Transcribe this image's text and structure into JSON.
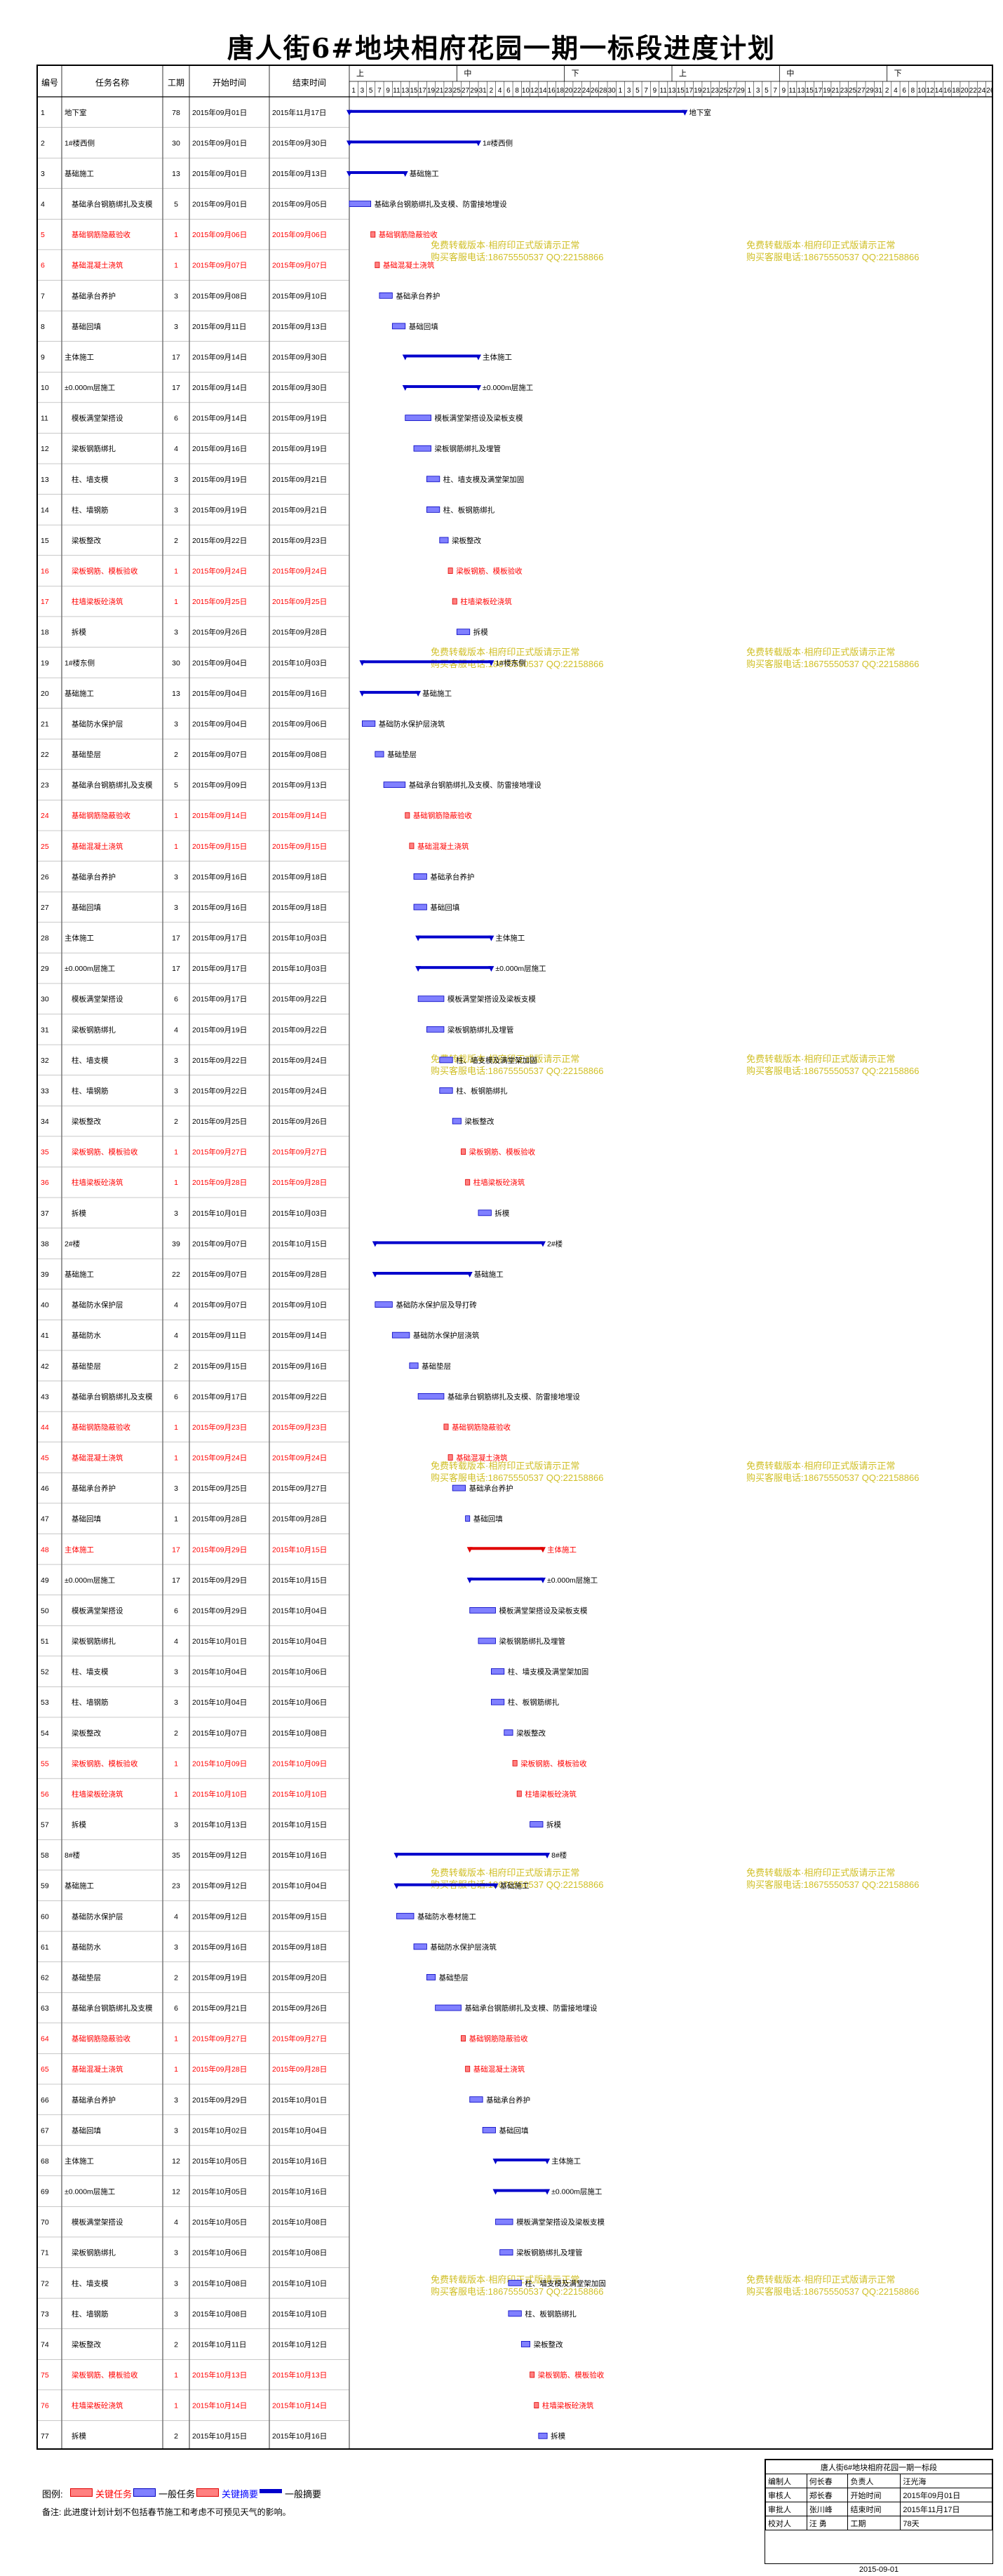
{
  "title": "唐人街6#地块相府花园一期一标段进度计划",
  "columns": [
    "编号",
    "任务名称",
    "工期",
    "开始时间",
    "结束时间"
  ],
  "timeline": {
    "months": [
      "上",
      "中",
      "下",
      "上",
      "中",
      "下"
    ],
    "day_ticks": [
      "1",
      "3",
      "5",
      "7",
      "9",
      "11",
      "13",
      "15",
      "17",
      "19",
      "21",
      "23",
      "25",
      "27",
      "29",
      "31",
      "2",
      "4",
      "6",
      "8",
      "10",
      "12",
      "14",
      "16",
      "18",
      "20",
      "22",
      "24",
      "26",
      "28",
      "30",
      "1",
      "3",
      "5",
      "7",
      "9",
      "11",
      "13",
      "15",
      "17",
      "19",
      "21",
      "23",
      "25",
      "27",
      "29",
      "1",
      "3",
      "5",
      "7",
      "9",
      "11",
      "13",
      "15",
      "17",
      "19",
      "21",
      "23",
      "25",
      "27",
      "29",
      "31",
      "2",
      "4",
      "6",
      "8",
      "10",
      "12",
      "14",
      "16",
      "18",
      "20",
      "22",
      "24",
      "26"
    ]
  },
  "watermark_lines": [
    "免费转载版本·相府印正式版请示正常",
    "购买客服电话:18675550537 QQ:22158866"
  ],
  "rows": [
    {
      "n": "1",
      "name": "地下室",
      "dur": "78",
      "start": "2015年09月01日",
      "end": "2015年11月17日",
      "s": 0,
      "d": 78,
      "type": "summary",
      "label": "地下室"
    },
    {
      "n": "2",
      "name": "1#楼西侧",
      "dur": "30",
      "start": "2015年09月01日",
      "end": "2015年09月30日",
      "s": 0,
      "d": 30,
      "type": "summary",
      "label": "1#楼西侧"
    },
    {
      "n": "3",
      "name": "基础施工",
      "dur": "13",
      "start": "2015年09月01日",
      "end": "2015年09月13日",
      "s": 0,
      "d": 13,
      "type": "summary",
      "label": "基础施工"
    },
    {
      "n": "4",
      "name": "基础承台钢筋绑扎及支模",
      "dur": "5",
      "start": "2015年09月01日",
      "end": "2015年09月05日",
      "s": 0,
      "d": 5,
      "type": "normal",
      "label": "基础承台钢筋绑扎及支模、防雷接地埋设"
    },
    {
      "n": "5",
      "name": "基础钢筋隐蔽验收",
      "dur": "1",
      "start": "2015年09月06日",
      "end": "2015年09月06日",
      "s": 5,
      "d": 1,
      "type": "critical",
      "label": "基础钢筋隐蔽验收"
    },
    {
      "n": "6",
      "name": "基础混凝土浇筑",
      "dur": "1",
      "start": "2015年09月07日",
      "end": "2015年09月07日",
      "s": 6,
      "d": 1,
      "type": "critical",
      "label": "基础混凝土浇筑"
    },
    {
      "n": "7",
      "name": "基础承台养护",
      "dur": "3",
      "start": "2015年09月08日",
      "end": "2015年09月10日",
      "s": 7,
      "d": 3,
      "type": "normal",
      "label": "基础承台养护"
    },
    {
      "n": "8",
      "name": "基础回填",
      "dur": "3",
      "start": "2015年09月11日",
      "end": "2015年09月13日",
      "s": 10,
      "d": 3,
      "type": "normal",
      "label": "基础回填"
    },
    {
      "n": "9",
      "name": "主体施工",
      "dur": "17",
      "start": "2015年09月14日",
      "end": "2015年09月30日",
      "s": 13,
      "d": 17,
      "type": "summary",
      "label": "主体施工"
    },
    {
      "n": "10",
      "name": "±0.000m层施工",
      "dur": "17",
      "start": "2015年09月14日",
      "end": "2015年09月30日",
      "s": 13,
      "d": 17,
      "type": "summary",
      "label": "±0.000m层施工"
    },
    {
      "n": "11",
      "name": "模板满堂架搭设",
      "dur": "6",
      "start": "2015年09月14日",
      "end": "2015年09月19日",
      "s": 13,
      "d": 6,
      "type": "normal",
      "label": "模板满堂架搭设及梁板支模"
    },
    {
      "n": "12",
      "name": "梁板钢筋绑扎",
      "dur": "4",
      "start": "2015年09月16日",
      "end": "2015年09月19日",
      "s": 15,
      "d": 4,
      "type": "normal",
      "label": "梁板钢筋绑扎及埋管"
    },
    {
      "n": "13",
      "name": "柱、墙支模",
      "dur": "3",
      "start": "2015年09月19日",
      "end": "2015年09月21日",
      "s": 18,
      "d": 3,
      "type": "normal",
      "label": "柱、墙支模及满堂架加固"
    },
    {
      "n": "14",
      "name": "柱、墙钢筋",
      "dur": "3",
      "start": "2015年09月19日",
      "end": "2015年09月21日",
      "s": 18,
      "d": 3,
      "type": "normal",
      "label": "柱、板钢筋绑扎"
    },
    {
      "n": "15",
      "name": "梁板整改",
      "dur": "2",
      "start": "2015年09月22日",
      "end": "2015年09月23日",
      "s": 21,
      "d": 2,
      "type": "normal",
      "label": "梁板整改"
    },
    {
      "n": "16",
      "name": "梁板钢筋、模板验收",
      "dur": "1",
      "start": "2015年09月24日",
      "end": "2015年09月24日",
      "s": 23,
      "d": 1,
      "type": "critical",
      "label": "梁板钢筋、模板验收"
    },
    {
      "n": "17",
      "name": "柱墙梁板砼浇筑",
      "dur": "1",
      "start": "2015年09月25日",
      "end": "2015年09月25日",
      "s": 24,
      "d": 1,
      "type": "critical",
      "label": "柱墙梁板砼浇筑"
    },
    {
      "n": "18",
      "name": "拆模",
      "dur": "3",
      "start": "2015年09月26日",
      "end": "2015年09月28日",
      "s": 25,
      "d": 3,
      "type": "normal",
      "label": "拆模"
    },
    {
      "n": "19",
      "name": "1#楼东侧",
      "dur": "30",
      "start": "2015年09月04日",
      "end": "2015年10月03日",
      "s": 3,
      "d": 30,
      "type": "summary",
      "label": "1#楼东侧"
    },
    {
      "n": "20",
      "name": "基础施工",
      "dur": "13",
      "start": "2015年09月04日",
      "end": "2015年09月16日",
      "s": 3,
      "d": 13,
      "type": "summary",
      "label": "基础施工"
    },
    {
      "n": "21",
      "name": "基础防水保护层",
      "dur": "3",
      "start": "2015年09月04日",
      "end": "2015年09月06日",
      "s": 3,
      "d": 3,
      "type": "normal",
      "label": "基础防水保护层浇筑"
    },
    {
      "n": "22",
      "name": "基础垫层",
      "dur": "2",
      "start": "2015年09月07日",
      "end": "2015年09月08日",
      "s": 6,
      "d": 2,
      "type": "normal",
      "label": "基础垫层"
    },
    {
      "n": "23",
      "name": "基础承台钢筋绑扎及支模",
      "dur": "5",
      "start": "2015年09月09日",
      "end": "2015年09月13日",
      "s": 8,
      "d": 5,
      "type": "normal",
      "label": "基础承台钢筋绑扎及支模、防雷接地埋设"
    },
    {
      "n": "24",
      "name": "基础钢筋隐蔽验收",
      "dur": "1",
      "start": "2015年09月14日",
      "end": "2015年09月14日",
      "s": 13,
      "d": 1,
      "type": "critical",
      "label": "基础钢筋隐蔽验收"
    },
    {
      "n": "25",
      "name": "基础混凝土浇筑",
      "dur": "1",
      "start": "2015年09月15日",
      "end": "2015年09月15日",
      "s": 14,
      "d": 1,
      "type": "critical",
      "label": "基础混凝土浇筑"
    },
    {
      "n": "26",
      "name": "基础承台养护",
      "dur": "3",
      "start": "2015年09月16日",
      "end": "2015年09月18日",
      "s": 15,
      "d": 3,
      "type": "normal",
      "label": "基础承台养护"
    },
    {
      "n": "27",
      "name": "基础回填",
      "dur": "3",
      "start": "2015年09月16日",
      "end": "2015年09月18日",
      "s": 15,
      "d": 3,
      "type": "normal",
      "label": "基础回填"
    },
    {
      "n": "28",
      "name": "主体施工",
      "dur": "17",
      "start": "2015年09月17日",
      "end": "2015年10月03日",
      "s": 16,
      "d": 17,
      "type": "summary",
      "label": "主体施工"
    },
    {
      "n": "29",
      "name": "±0.000m层施工",
      "dur": "17",
      "start": "2015年09月17日",
      "end": "2015年10月03日",
      "s": 16,
      "d": 17,
      "type": "summary",
      "label": "±0.000m层施工"
    },
    {
      "n": "30",
      "name": "模板满堂架搭设",
      "dur": "6",
      "start": "2015年09月17日",
      "end": "2015年09月22日",
      "s": 16,
      "d": 6,
      "type": "normal",
      "label": "模板满堂架搭设及梁板支模"
    },
    {
      "n": "31",
      "name": "梁板钢筋绑扎",
      "dur": "4",
      "start": "2015年09月19日",
      "end": "2015年09月22日",
      "s": 18,
      "d": 4,
      "type": "normal",
      "label": "梁板钢筋绑扎及埋管"
    },
    {
      "n": "32",
      "name": "柱、墙支模",
      "dur": "3",
      "start": "2015年09月22日",
      "end": "2015年09月24日",
      "s": 21,
      "d": 3,
      "type": "normal",
      "label": "柱、墙支模及满堂架加固"
    },
    {
      "n": "33",
      "name": "柱、墙钢筋",
      "dur": "3",
      "start": "2015年09月22日",
      "end": "2015年09月24日",
      "s": 21,
      "d": 3,
      "type": "normal",
      "label": "柱、板钢筋绑扎"
    },
    {
      "n": "34",
      "name": "梁板整改",
      "dur": "2",
      "start": "2015年09月25日",
      "end": "2015年09月26日",
      "s": 24,
      "d": 2,
      "type": "normal",
      "label": "梁板整改"
    },
    {
      "n": "35",
      "name": "梁板钢筋、模板验收",
      "dur": "1",
      "start": "2015年09月27日",
      "end": "2015年09月27日",
      "s": 26,
      "d": 1,
      "type": "critical",
      "label": "梁板钢筋、模板验收"
    },
    {
      "n": "36",
      "name": "柱墙梁板砼浇筑",
      "dur": "1",
      "start": "2015年09月28日",
      "end": "2015年09月28日",
      "s": 27,
      "d": 1,
      "type": "critical",
      "label": "柱墙梁板砼浇筑"
    },
    {
      "n": "37",
      "name": "拆模",
      "dur": "3",
      "start": "2015年10月01日",
      "end": "2015年10月03日",
      "s": 30,
      "d": 3,
      "type": "normal",
      "label": "拆模"
    },
    {
      "n": "38",
      "name": "2#楼",
      "dur": "39",
      "start": "2015年09月07日",
      "end": "2015年10月15日",
      "s": 6,
      "d": 39,
      "type": "summary",
      "label": "2#楼"
    },
    {
      "n": "39",
      "name": "基础施工",
      "dur": "22",
      "start": "2015年09月07日",
      "end": "2015年09月28日",
      "s": 6,
      "d": 22,
      "type": "summary",
      "label": "基础施工"
    },
    {
      "n": "40",
      "name": "基础防水保护层",
      "dur": "4",
      "start": "2015年09月07日",
      "end": "2015年09月10日",
      "s": 6,
      "d": 4,
      "type": "normal",
      "label": "基础防水保护层及导打砖"
    },
    {
      "n": "41",
      "name": "基础防水",
      "dur": "4",
      "start": "2015年09月11日",
      "end": "2015年09月14日",
      "s": 10,
      "d": 4,
      "type": "normal",
      "label": "基础防水保护层浇筑"
    },
    {
      "n": "42",
      "name": "基础垫层",
      "dur": "2",
      "start": "2015年09月15日",
      "end": "2015年09月16日",
      "s": 14,
      "d": 2,
      "type": "normal",
      "label": "基础垫层"
    },
    {
      "n": "43",
      "name": "基础承台钢筋绑扎及支模",
      "dur": "6",
      "start": "2015年09月17日",
      "end": "2015年09月22日",
      "s": 16,
      "d": 6,
      "type": "normal",
      "label": "基础承台钢筋绑扎及支模、防雷接地埋设"
    },
    {
      "n": "44",
      "name": "基础钢筋隐蔽验收",
      "dur": "1",
      "start": "2015年09月23日",
      "end": "2015年09月23日",
      "s": 22,
      "d": 1,
      "type": "critical",
      "label": "基础钢筋隐蔽验收"
    },
    {
      "n": "45",
      "name": "基础混凝土浇筑",
      "dur": "1",
      "start": "2015年09月24日",
      "end": "2015年09月24日",
      "s": 23,
      "d": 1,
      "type": "critical",
      "label": "基础混凝土浇筑"
    },
    {
      "n": "46",
      "name": "基础承台养护",
      "dur": "3",
      "start": "2015年09月25日",
      "end": "2015年09月27日",
      "s": 24,
      "d": 3,
      "type": "normal",
      "label": "基础承台养护"
    },
    {
      "n": "47",
      "name": "基础回填",
      "dur": "1",
      "start": "2015年09月28日",
      "end": "2015年09月28日",
      "s": 27,
      "d": 1,
      "type": "normal",
      "label": "基础回填"
    },
    {
      "n": "48",
      "name": "主体施工",
      "dur": "17",
      "start": "2015年09月29日",
      "end": "2015年10月15日",
      "s": 28,
      "d": 17,
      "type": "critical-summary",
      "label": "主体施工"
    },
    {
      "n": "49",
      "name": "±0.000m层施工",
      "dur": "17",
      "start": "2015年09月29日",
      "end": "2015年10月15日",
      "s": 28,
      "d": 17,
      "type": "summary",
      "label": "±0.000m层施工"
    },
    {
      "n": "50",
      "name": "模板满堂架搭设",
      "dur": "6",
      "start": "2015年09月29日",
      "end": "2015年10月04日",
      "s": 28,
      "d": 6,
      "type": "normal",
      "label": "模板满堂架搭设及梁板支模"
    },
    {
      "n": "51",
      "name": "梁板钢筋绑扎",
      "dur": "4",
      "start": "2015年10月01日",
      "end": "2015年10月04日",
      "s": 30,
      "d": 4,
      "type": "normal",
      "label": "梁板钢筋绑扎及埋管"
    },
    {
      "n": "52",
      "name": "柱、墙支模",
      "dur": "3",
      "start": "2015年10月04日",
      "end": "2015年10月06日",
      "s": 33,
      "d": 3,
      "type": "normal",
      "label": "柱、墙支模及满堂架加固"
    },
    {
      "n": "53",
      "name": "柱、墙钢筋",
      "dur": "3",
      "start": "2015年10月04日",
      "end": "2015年10月06日",
      "s": 33,
      "d": 3,
      "type": "normal",
      "label": "柱、板钢筋绑扎"
    },
    {
      "n": "54",
      "name": "梁板整改",
      "dur": "2",
      "start": "2015年10月07日",
      "end": "2015年10月08日",
      "s": 36,
      "d": 2,
      "type": "normal",
      "label": "梁板整改"
    },
    {
      "n": "55",
      "name": "梁板钢筋、模板验收",
      "dur": "1",
      "start": "2015年10月09日",
      "end": "2015年10月09日",
      "s": 38,
      "d": 1,
      "type": "critical",
      "label": "梁板钢筋、模板验收"
    },
    {
      "n": "56",
      "name": "柱墙梁板砼浇筑",
      "dur": "1",
      "start": "2015年10月10日",
      "end": "2015年10月10日",
      "s": 39,
      "d": 1,
      "type": "critical",
      "label": "柱墙梁板砼浇筑"
    },
    {
      "n": "57",
      "name": "拆模",
      "dur": "3",
      "start": "2015年10月13日",
      "end": "2015年10月15日",
      "s": 42,
      "d": 3,
      "type": "normal",
      "label": "拆模"
    },
    {
      "n": "58",
      "name": "8#楼",
      "dur": "35",
      "start": "2015年09月12日",
      "end": "2015年10月16日",
      "s": 11,
      "d": 35,
      "type": "summary",
      "label": "8#楼"
    },
    {
      "n": "59",
      "name": "基础施工",
      "dur": "23",
      "start": "2015年09月12日",
      "end": "2015年10月04日",
      "s": 11,
      "d": 23,
      "type": "summary",
      "label": "基础施工"
    },
    {
      "n": "60",
      "name": "基础防水保护层",
      "dur": "4",
      "start": "2015年09月12日",
      "end": "2015年09月15日",
      "s": 11,
      "d": 4,
      "type": "normal",
      "label": "基础防水卷材施工"
    },
    {
      "n": "61",
      "name": "基础防水",
      "dur": "3",
      "start": "2015年09月16日",
      "end": "2015年09月18日",
      "s": 15,
      "d": 3,
      "type": "normal",
      "label": "基础防水保护层浇筑"
    },
    {
      "n": "62",
      "name": "基础垫层",
      "dur": "2",
      "start": "2015年09月19日",
      "end": "2015年09月20日",
      "s": 18,
      "d": 2,
      "type": "normal",
      "label": "基础垫层"
    },
    {
      "n": "63",
      "name": "基础承台钢筋绑扎及支模",
      "dur": "6",
      "start": "2015年09月21日",
      "end": "2015年09月26日",
      "s": 20,
      "d": 6,
      "type": "normal",
      "label": "基础承台钢筋绑扎及支模、防雷接地埋设"
    },
    {
      "n": "64",
      "name": "基础钢筋隐蔽验收",
      "dur": "1",
      "start": "2015年09月27日",
      "end": "2015年09月27日",
      "s": 26,
      "d": 1,
      "type": "critical",
      "label": "基础钢筋隐蔽验收"
    },
    {
      "n": "65",
      "name": "基础混凝土浇筑",
      "dur": "1",
      "start": "2015年09月28日",
      "end": "2015年09月28日",
      "s": 27,
      "d": 1,
      "type": "critical",
      "label": "基础混凝土浇筑"
    },
    {
      "n": "66",
      "name": "基础承台养护",
      "dur": "3",
      "start": "2015年09月29日",
      "end": "2015年10月01日",
      "s": 28,
      "d": 3,
      "type": "normal",
      "label": "基础承台养护"
    },
    {
      "n": "67",
      "name": "基础回填",
      "dur": "3",
      "start": "2015年10月02日",
      "end": "2015年10月04日",
      "s": 31,
      "d": 3,
      "type": "normal",
      "label": "基础回填"
    },
    {
      "n": "68",
      "name": "主体施工",
      "dur": "12",
      "start": "2015年10月05日",
      "end": "2015年10月16日",
      "s": 34,
      "d": 12,
      "type": "summary",
      "label": "主体施工"
    },
    {
      "n": "69",
      "name": "±0.000m层施工",
      "dur": "12",
      "start": "2015年10月05日",
      "end": "2015年10月16日",
      "s": 34,
      "d": 12,
      "type": "summary",
      "label": "±0.000m层施工"
    },
    {
      "n": "70",
      "name": "模板满堂架搭设",
      "dur": "4",
      "start": "2015年10月05日",
      "end": "2015年10月08日",
      "s": 34,
      "d": 4,
      "type": "normal",
      "label": "模板满堂架搭设及梁板支模"
    },
    {
      "n": "71",
      "name": "梁板钢筋绑扎",
      "dur": "3",
      "start": "2015年10月06日",
      "end": "2015年10月08日",
      "s": 35,
      "d": 3,
      "type": "normal",
      "label": "梁板钢筋绑扎及埋管"
    },
    {
      "n": "72",
      "name": "柱、墙支模",
      "dur": "3",
      "start": "2015年10月08日",
      "end": "2015年10月10日",
      "s": 37,
      "d": 3,
      "type": "normal",
      "label": "柱、墙支模及满堂架加固"
    },
    {
      "n": "73",
      "name": "柱、墙钢筋",
      "dur": "3",
      "start": "2015年10月08日",
      "end": "2015年10月10日",
      "s": 37,
      "d": 3,
      "type": "normal",
      "label": "柱、板钢筋绑扎"
    },
    {
      "n": "74",
      "name": "梁板整改",
      "dur": "2",
      "start": "2015年10月11日",
      "end": "2015年10月12日",
      "s": 40,
      "d": 2,
      "type": "normal",
      "label": "梁板整改"
    },
    {
      "n": "75",
      "name": "梁板钢筋、模板验收",
      "dur": "1",
      "start": "2015年10月13日",
      "end": "2015年10月13日",
      "s": 42,
      "d": 1,
      "type": "critical",
      "label": "梁板钢筋、模板验收"
    },
    {
      "n": "76",
      "name": "柱墙梁板砼浇筑",
      "dur": "1",
      "start": "2015年10月14日",
      "end": "2015年10月14日",
      "s": 43,
      "d": 1,
      "type": "critical",
      "label": "柱墙梁板砼浇筑"
    },
    {
      "n": "77",
      "name": "拆模",
      "dur": "2",
      "start": "2015年10月15日",
      "end": "2015年10月16日",
      "s": 44,
      "d": 2,
      "type": "normal",
      "label": "拆模"
    }
  ],
  "legend": [
    {
      "label": "关键任务",
      "kind": "critical"
    },
    {
      "label": "一般任务",
      "kind": "normal"
    },
    {
      "label": "关键摘要",
      "kind": "critical-summary"
    },
    {
      "label": "一般摘要",
      "kind": "summary"
    }
  ],
  "legend_prefix": "图例:",
  "note": "备注: 此进度计划计划不包括春节施工和考虑不可预见天气的影响。",
  "info": {
    "project": "唐人街6#地块相府花园一期一标段",
    "r1": [
      "编制人",
      "何长春",
      "负责人",
      "汪光海"
    ],
    "r2": [
      "审核人",
      "郑长春",
      "开始时间",
      "2015年09月01日"
    ],
    "r3": [
      "审批人",
      "张川峰",
      "结束时间",
      "2015年11月17日"
    ],
    "r4": [
      "校对人",
      "汪 勇",
      "工期",
      "78天"
    ],
    "date": "2015-09-01"
  },
  "colors": {
    "normal_fill": "#8080ff",
    "normal_stroke": "#0000c0",
    "critical_fill": "#ff8080",
    "critical_stroke": "#e00000",
    "summary": "#0000cc",
    "critical_text": "#ff0000",
    "watermark": "#c8b400"
  }
}
